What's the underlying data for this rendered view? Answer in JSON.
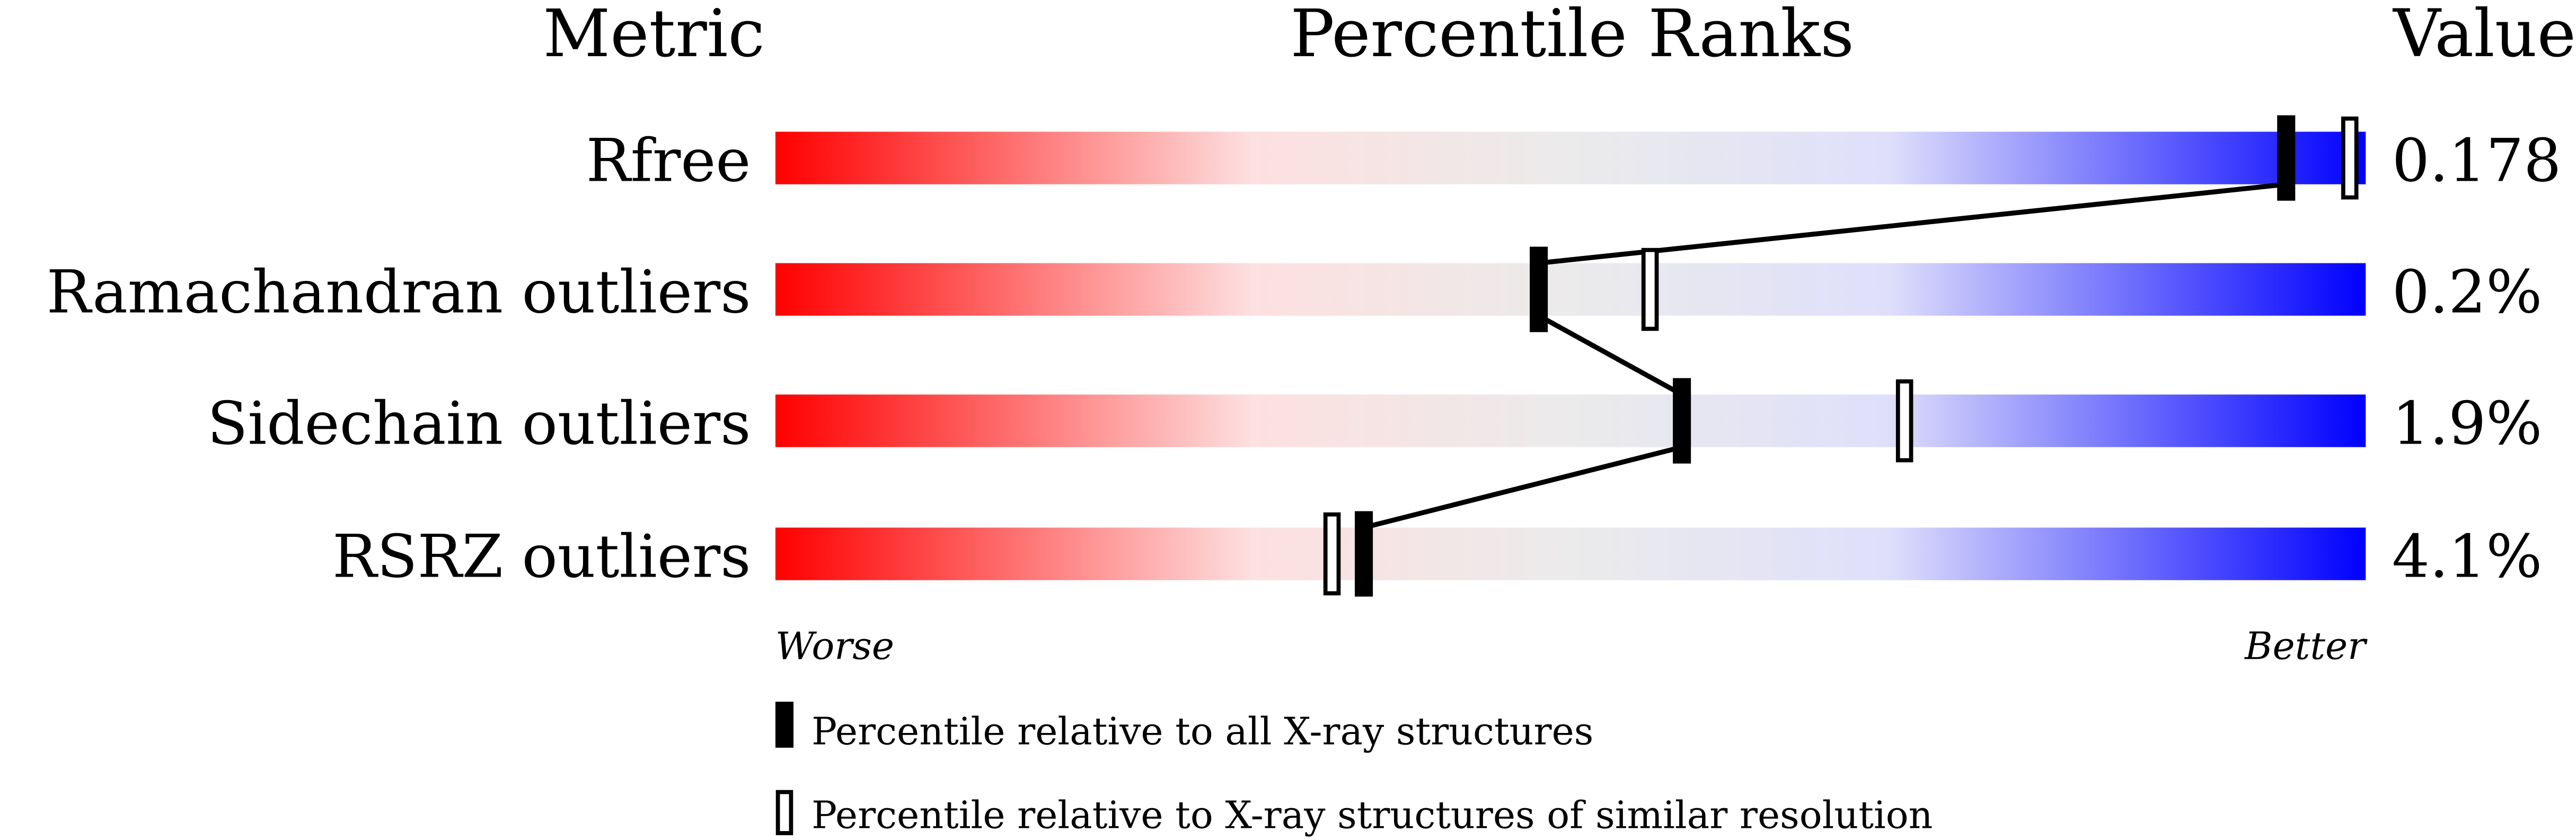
{
  "chart_data": {
    "type": "bar",
    "headers": {
      "metric": "Metric",
      "ranks": "Percentile Ranks",
      "value": "Value"
    },
    "xlim": [
      0,
      100
    ],
    "axis_labels": {
      "left": "Worse",
      "right": "Better"
    },
    "metrics": [
      {
        "name": "Rfree",
        "value": "0.178",
        "percentile_all": 95,
        "percentile_similar": 99
      },
      {
        "name": "Ramachandran outliers",
        "value": "0.2%",
        "percentile_all": 48,
        "percentile_similar": 55
      },
      {
        "name": "Sidechain outliers",
        "value": "1.9%",
        "percentile_all": 57,
        "percentile_similar": 71
      },
      {
        "name": "RSRZ outliers",
        "value": "4.1%",
        "percentile_all": 37,
        "percentile_similar": 35
      }
    ],
    "legend": {
      "all": "Percentile relative to all X-ray structures",
      "similar": "Percentile relative to X-ray structures of similar resolution"
    },
    "colors": {
      "worse": "#ff0000",
      "mid_red": "#fde0e0",
      "middle": "#ebebeb",
      "mid_blue": "#dfdffb",
      "better": "#0000ff",
      "marker": "#000000"
    }
  }
}
